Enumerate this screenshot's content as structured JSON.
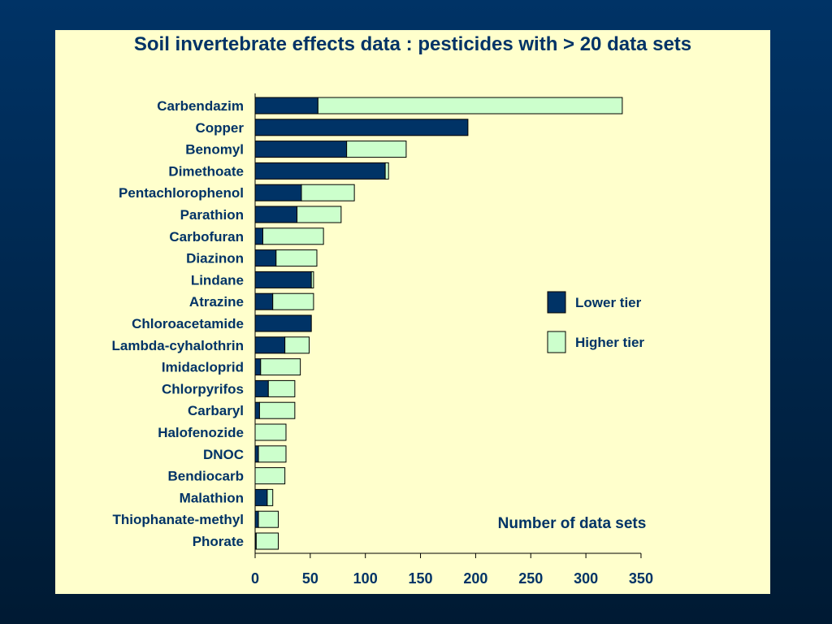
{
  "colors": {
    "lower": "#003366",
    "higher": "#ccffcc",
    "text": "#003366",
    "panel": "#ffffcc"
  },
  "legend": {
    "lower_label": "Lower tier",
    "higher_label": "Higher tier"
  },
  "chart_data": {
    "type": "bar",
    "orientation": "horizontal",
    "stacked": true,
    "title": "Soil invertebrate effects data : pesticides with > 20 data sets",
    "xlabel": "Number of data sets",
    "ylabel": "",
    "xlim": [
      0,
      350
    ],
    "xticks": [
      0,
      50,
      100,
      150,
      200,
      250,
      300,
      350
    ],
    "legend_position": "right",
    "grid": false,
    "categories": [
      "Carbendazim",
      "Copper",
      "Benomyl",
      "Dimethoate",
      "Pentachlorophenol",
      "Parathion",
      "Carbofuran",
      "Diazinon",
      "Lindane",
      "Atrazine",
      "Chloroacetamide",
      "Lambda-cyhalothrin",
      "Imidacloprid",
      "Chlorpyrifos",
      "Carbaryl",
      "Halofenozide",
      "DNOC",
      "Bendiocarb",
      "Malathion",
      "Thiophanate-methyl",
      "Phorate"
    ],
    "series": [
      {
        "name": "Lower tier",
        "values": [
          57,
          193,
          83,
          118,
          42,
          38,
          7,
          19,
          51,
          16,
          51,
          27,
          5,
          12,
          4,
          0,
          3,
          0,
          11,
          3,
          1
        ]
      },
      {
        "name": "Higher tier",
        "values": [
          276,
          0,
          54,
          3,
          48,
          40,
          55,
          37,
          2,
          37,
          0,
          22,
          36,
          24,
          32,
          28,
          25,
          27,
          5,
          18,
          20
        ]
      }
    ]
  }
}
